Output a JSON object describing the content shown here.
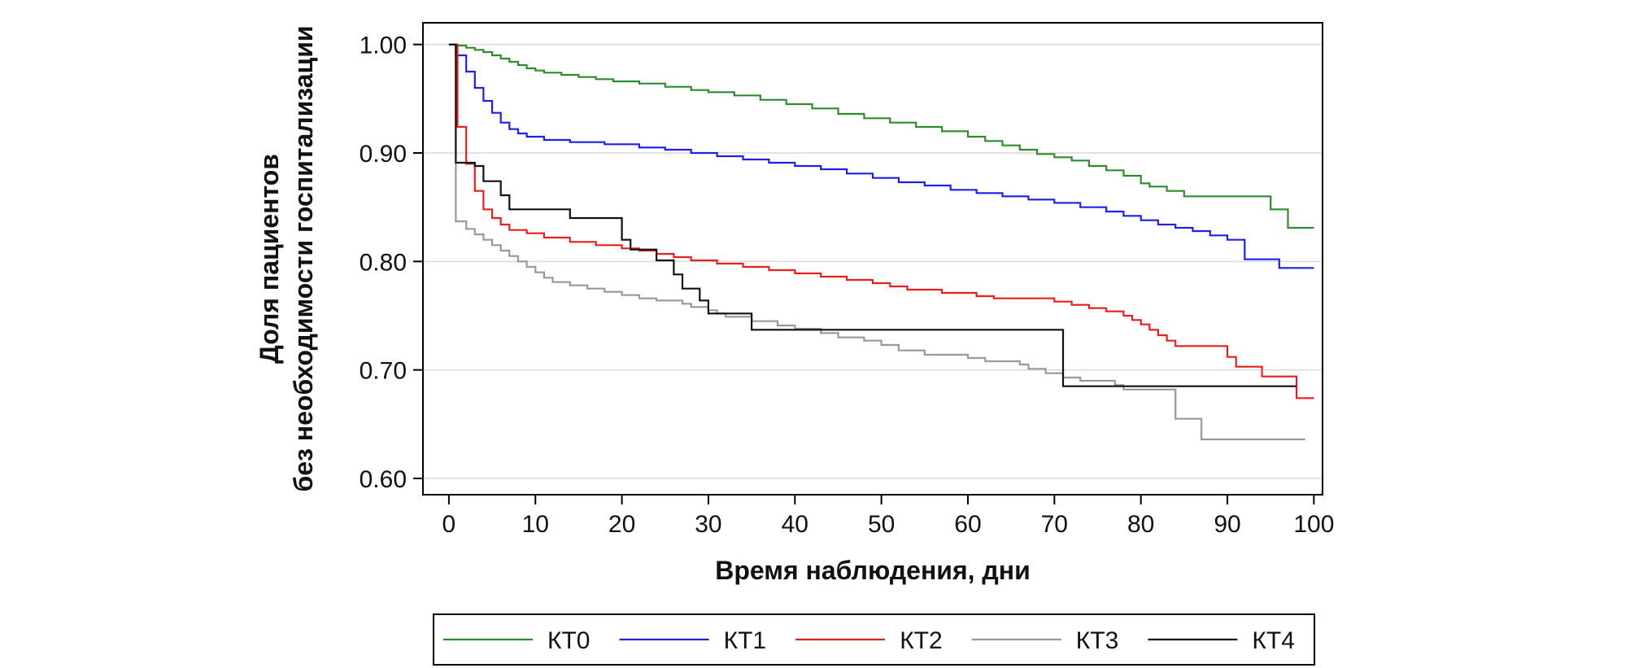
{
  "chart_data": {
    "type": "line",
    "step": true,
    "title": "",
    "xlabel": "Время наблюдения, дни",
    "ylabel_line1": "Доля пациентов",
    "ylabel_line2": "без необходимости госпитализации",
    "xlim": [
      -3,
      101
    ],
    "ylim": [
      0.585,
      1.02
    ],
    "xticks": [
      0,
      10,
      20,
      30,
      40,
      50,
      60,
      70,
      80,
      90,
      100
    ],
    "xtick_labels": [
      "0",
      "10",
      "20",
      "30",
      "40",
      "50",
      "60",
      "70",
      "80",
      "90",
      "100"
    ],
    "yticks": [
      0.6,
      0.7,
      0.8,
      0.9,
      1.0
    ],
    "ytick_labels": [
      "0.60",
      "0.70",
      "0.80",
      "0.90",
      "1.00"
    ],
    "grid": "horizontal",
    "legend_position": "bottom",
    "series": [
      {
        "name": "КТ0",
        "color": "#2e8b2e",
        "points": [
          [
            0,
            1.0
          ],
          [
            1,
            0.999
          ],
          [
            2,
            0.997
          ],
          [
            3,
            0.995
          ],
          [
            4,
            0.993
          ],
          [
            5,
            0.99
          ],
          [
            6,
            0.987
          ],
          [
            7,
            0.984
          ],
          [
            8,
            0.981
          ],
          [
            9,
            0.978
          ],
          [
            10,
            0.976
          ],
          [
            11,
            0.974
          ],
          [
            13,
            0.972
          ],
          [
            15,
            0.97
          ],
          [
            17,
            0.968
          ],
          [
            19,
            0.966
          ],
          [
            22,
            0.964
          ],
          [
            25,
            0.961
          ],
          [
            28,
            0.958
          ],
          [
            30,
            0.956
          ],
          [
            33,
            0.953
          ],
          [
            36,
            0.949
          ],
          [
            39,
            0.945
          ],
          [
            42,
            0.941
          ],
          [
            45,
            0.936
          ],
          [
            48,
            0.932
          ],
          [
            51,
            0.928
          ],
          [
            54,
            0.924
          ],
          [
            57,
            0.92
          ],
          [
            60,
            0.915
          ],
          [
            62,
            0.911
          ],
          [
            64,
            0.907
          ],
          [
            66,
            0.903
          ],
          [
            68,
            0.899
          ],
          [
            70,
            0.896
          ],
          [
            72,
            0.893
          ],
          [
            74,
            0.888
          ],
          [
            76,
            0.884
          ],
          [
            78,
            0.879
          ],
          [
            80,
            0.872
          ],
          [
            81,
            0.869
          ],
          [
            83,
            0.865
          ],
          [
            85,
            0.86
          ],
          [
            95,
            0.848
          ],
          [
            97,
            0.831
          ],
          [
            100,
            0.831
          ]
        ]
      },
      {
        "name": "КТ1",
        "color": "#1f1fe6",
        "points": [
          [
            0,
            1.0
          ],
          [
            0.8,
            0.99
          ],
          [
            2,
            0.975
          ],
          [
            3,
            0.96
          ],
          [
            4,
            0.948
          ],
          [
            5,
            0.937
          ],
          [
            6,
            0.928
          ],
          [
            7,
            0.922
          ],
          [
            8,
            0.918
          ],
          [
            9,
            0.915
          ],
          [
            11,
            0.912
          ],
          [
            14,
            0.91
          ],
          [
            18,
            0.908
          ],
          [
            22,
            0.905
          ],
          [
            25,
            0.903
          ],
          [
            28,
            0.9
          ],
          [
            31,
            0.897
          ],
          [
            34,
            0.894
          ],
          [
            37,
            0.891
          ],
          [
            40,
            0.888
          ],
          [
            43,
            0.885
          ],
          [
            46,
            0.881
          ],
          [
            49,
            0.877
          ],
          [
            52,
            0.873
          ],
          [
            55,
            0.87
          ],
          [
            58,
            0.866
          ],
          [
            61,
            0.863
          ],
          [
            64,
            0.86
          ],
          [
            67,
            0.857
          ],
          [
            70,
            0.854
          ],
          [
            73,
            0.85
          ],
          [
            76,
            0.846
          ],
          [
            78,
            0.842
          ],
          [
            80,
            0.838
          ],
          [
            82,
            0.834
          ],
          [
            84,
            0.831
          ],
          [
            86,
            0.828
          ],
          [
            88,
            0.824
          ],
          [
            90,
            0.82
          ],
          [
            92,
            0.802
          ],
          [
            96,
            0.794
          ],
          [
            100,
            0.794
          ]
        ]
      },
      {
        "name": "КТ2",
        "color": "#e61f1f",
        "points": [
          [
            0,
            1.0
          ],
          [
            1,
            0.924
          ],
          [
            2,
            0.89
          ],
          [
            3,
            0.865
          ],
          [
            4,
            0.848
          ],
          [
            5,
            0.84
          ],
          [
            6,
            0.834
          ],
          [
            7,
            0.829
          ],
          [
            9,
            0.826
          ],
          [
            11,
            0.822
          ],
          [
            14,
            0.818
          ],
          [
            17,
            0.815
          ],
          [
            20,
            0.812
          ],
          [
            22,
            0.81
          ],
          [
            24,
            0.807
          ],
          [
            26,
            0.804
          ],
          [
            28,
            0.801
          ],
          [
            31,
            0.798
          ],
          [
            34,
            0.795
          ],
          [
            37,
            0.792
          ],
          [
            40,
            0.789
          ],
          [
            43,
            0.786
          ],
          [
            46,
            0.783
          ],
          [
            49,
            0.78
          ],
          [
            51,
            0.777
          ],
          [
            53,
            0.774
          ],
          [
            57,
            0.771
          ],
          [
            61,
            0.768
          ],
          [
            63,
            0.766
          ],
          [
            70,
            0.763
          ],
          [
            72,
            0.76
          ],
          [
            74,
            0.757
          ],
          [
            76,
            0.754
          ],
          [
            78,
            0.75
          ],
          [
            79,
            0.746
          ],
          [
            80,
            0.742
          ],
          [
            81,
            0.737
          ],
          [
            82,
            0.732
          ],
          [
            83,
            0.727
          ],
          [
            84,
            0.722
          ],
          [
            90,
            0.712
          ],
          [
            91,
            0.703
          ],
          [
            94,
            0.694
          ],
          [
            98,
            0.674
          ],
          [
            100,
            0.674
          ]
        ]
      },
      {
        "name": "КТ3",
        "color": "#999999",
        "points": [
          [
            0,
            1.0
          ],
          [
            0.8,
            0.837
          ],
          [
            2,
            0.83
          ],
          [
            3,
            0.825
          ],
          [
            4,
            0.82
          ],
          [
            5,
            0.815
          ],
          [
            6,
            0.81
          ],
          [
            7,
            0.805
          ],
          [
            8,
            0.8
          ],
          [
            9,
            0.795
          ],
          [
            10,
            0.79
          ],
          [
            11,
            0.785
          ],
          [
            12,
            0.781
          ],
          [
            14,
            0.778
          ],
          [
            16,
            0.775
          ],
          [
            18,
            0.772
          ],
          [
            20,
            0.769
          ],
          [
            22,
            0.766
          ],
          [
            24,
            0.764
          ],
          [
            27,
            0.761
          ],
          [
            28,
            0.758
          ],
          [
            30,
            0.755
          ],
          [
            31,
            0.752
          ],
          [
            32,
            0.749
          ],
          [
            35,
            0.745
          ],
          [
            38,
            0.741
          ],
          [
            40,
            0.738
          ],
          [
            43,
            0.734
          ],
          [
            45,
            0.73
          ],
          [
            48,
            0.727
          ],
          [
            50,
            0.723
          ],
          [
            52,
            0.718
          ],
          [
            55,
            0.714
          ],
          [
            60,
            0.711
          ],
          [
            62,
            0.708
          ],
          [
            66,
            0.705
          ],
          [
            67,
            0.701
          ],
          [
            69,
            0.697
          ],
          [
            71,
            0.693
          ],
          [
            73,
            0.69
          ],
          [
            77,
            0.686
          ],
          [
            78,
            0.682
          ],
          [
            84,
            0.655
          ],
          [
            87,
            0.636
          ],
          [
            99,
            0.636
          ]
        ]
      },
      {
        "name": "КТ4",
        "color": "#111111",
        "points": [
          [
            0,
            1.0
          ],
          [
            0.8,
            0.891
          ],
          [
            3,
            0.888
          ],
          [
            4,
            0.874
          ],
          [
            6,
            0.861
          ],
          [
            7,
            0.848
          ],
          [
            14,
            0.84
          ],
          [
            20,
            0.82
          ],
          [
            21,
            0.811
          ],
          [
            24,
            0.801
          ],
          [
            26,
            0.788
          ],
          [
            27,
            0.775
          ],
          [
            29,
            0.764
          ],
          [
            30,
            0.752
          ],
          [
            35,
            0.737
          ],
          [
            71,
            0.685
          ],
          [
            98,
            0.685
          ]
        ]
      }
    ]
  }
}
